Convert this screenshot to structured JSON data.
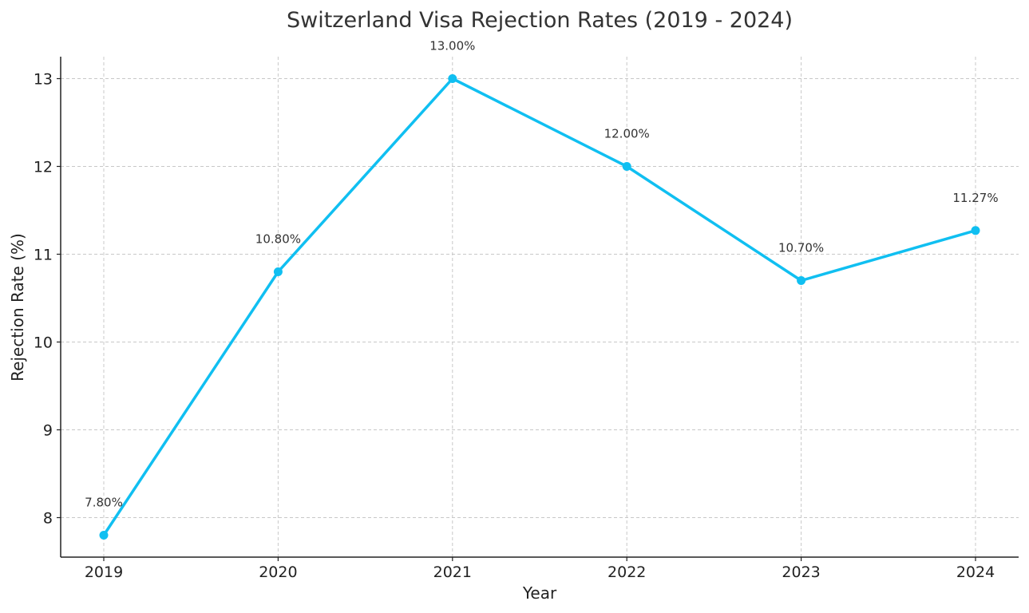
{
  "chart_data": {
    "type": "line",
    "title": "Switzerland Visa Rejection Rates (2019 - 2024)",
    "xlabel": "Year",
    "ylabel": "Rejection Rate (%)",
    "categories": [
      "2019",
      "2020",
      "2021",
      "2022",
      "2023",
      "2024"
    ],
    "series": [
      {
        "values": [
          7.8,
          10.8,
          13.0,
          12.0,
          10.7,
          11.27
        ],
        "color": "#10bff1",
        "labels": [
          "7.80%",
          "10.80%",
          "13.00%",
          "12.00%",
          "10.70%",
          "11.27%"
        ]
      }
    ],
    "yticks": [
      "8",
      "9",
      "10",
      "11",
      "12",
      "13"
    ],
    "ylim": [
      7.55,
      13.25
    ],
    "grid": true,
    "legend": "none"
  }
}
